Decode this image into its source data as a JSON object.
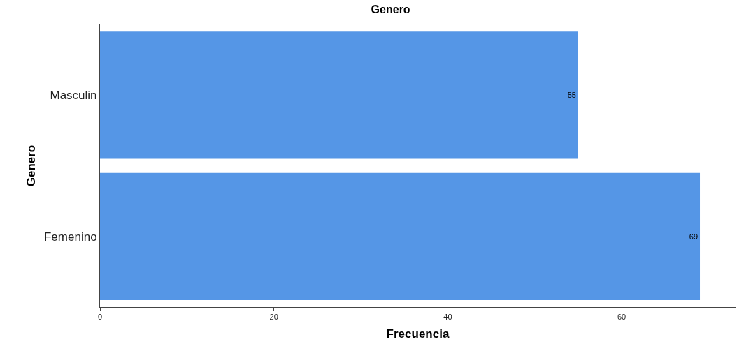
{
  "chart_data": {
    "type": "bar",
    "orientation": "horizontal",
    "title": "Genero",
    "xlabel": "Frecuencia",
    "ylabel": "Genero",
    "categories": [
      "Masculin",
      "Femenino"
    ],
    "values": [
      55,
      69
    ],
    "color": "#5596e6",
    "xlim": [
      0,
      73.1
    ],
    "xticks": [
      0,
      20,
      40,
      60
    ],
    "grid": false,
    "data_labels": true
  }
}
